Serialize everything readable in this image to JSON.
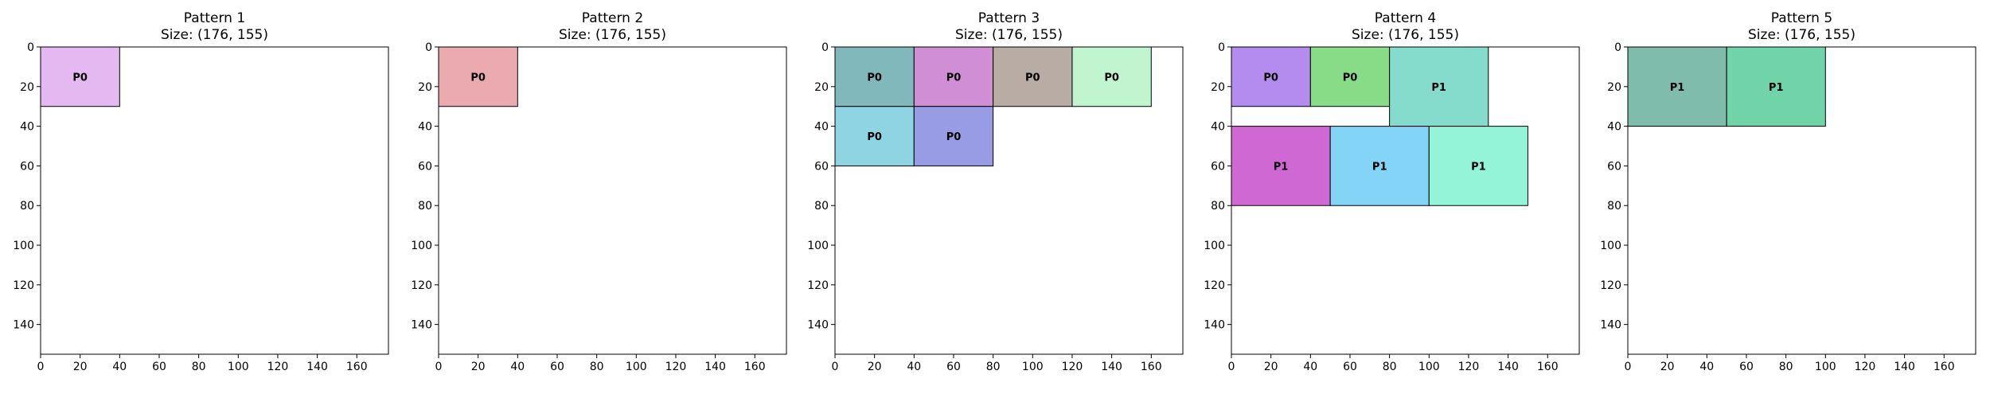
{
  "chart_data": [
    {
      "type": "rectangles",
      "title": "Pattern 1",
      "subtitle": "Size: (176, 155)",
      "xlim": [
        0,
        176
      ],
      "ylim": [
        0,
        155
      ],
      "y_inverted": true,
      "xticks": [
        0,
        20,
        40,
        60,
        80,
        100,
        120,
        140,
        160
      ],
      "yticks": [
        0,
        20,
        40,
        60,
        80,
        100,
        120,
        140
      ],
      "rects": [
        {
          "label": "P0",
          "x": 0,
          "y": 0,
          "w": 40,
          "h": 30,
          "color": "#e4b8f0"
        }
      ]
    },
    {
      "type": "rectangles",
      "title": "Pattern 2",
      "subtitle": "Size: (176, 155)",
      "xlim": [
        0,
        176
      ],
      "ylim": [
        0,
        155
      ],
      "y_inverted": true,
      "xticks": [
        0,
        20,
        40,
        60,
        80,
        100,
        120,
        140,
        160
      ],
      "yticks": [
        0,
        20,
        40,
        60,
        80,
        100,
        120,
        140
      ],
      "rects": [
        {
          "label": "P0",
          "x": 0,
          "y": 0,
          "w": 40,
          "h": 30,
          "color": "#ebaab0"
        }
      ]
    },
    {
      "type": "rectangles",
      "title": "Pattern 3",
      "subtitle": "Size: (176, 155)",
      "xlim": [
        0,
        176
      ],
      "ylim": [
        0,
        155
      ],
      "y_inverted": true,
      "xticks": [
        0,
        20,
        40,
        60,
        80,
        100,
        120,
        140,
        160
      ],
      "yticks": [
        0,
        20,
        40,
        60,
        80,
        100,
        120,
        140
      ],
      "rects": [
        {
          "label": "P0",
          "x": 0,
          "y": 0,
          "w": 40,
          "h": 30,
          "color": "#80b8bc"
        },
        {
          "label": "P0",
          "x": 40,
          "y": 0,
          "w": 40,
          "h": 30,
          "color": "#d08ed4"
        },
        {
          "label": "P0",
          "x": 80,
          "y": 0,
          "w": 40,
          "h": 30,
          "color": "#b8aca4"
        },
        {
          "label": "P0",
          "x": 120,
          "y": 0,
          "w": 40,
          "h": 30,
          "color": "#c0f5d0"
        },
        {
          "label": "P0",
          "x": 0,
          "y": 30,
          "w": 40,
          "h": 30,
          "color": "#8ed4e2"
        },
        {
          "label": "P0",
          "x": 40,
          "y": 30,
          "w": 40,
          "h": 30,
          "color": "#989ce4"
        }
      ]
    },
    {
      "type": "rectangles",
      "title": "Pattern 4",
      "subtitle": "Size: (176, 155)",
      "xlim": [
        0,
        176
      ],
      "ylim": [
        0,
        155
      ],
      "y_inverted": true,
      "xticks": [
        0,
        20,
        40,
        60,
        80,
        100,
        120,
        140,
        160
      ],
      "yticks": [
        0,
        20,
        40,
        60,
        80,
        100,
        120,
        140
      ],
      "rects": [
        {
          "label": "P0",
          "x": 0,
          "y": 0,
          "w": 40,
          "h": 30,
          "color": "#b48cf0"
        },
        {
          "label": "P0",
          "x": 40,
          "y": 0,
          "w": 40,
          "h": 30,
          "color": "#88dc88"
        },
        {
          "label": "P1",
          "x": 80,
          "y": 0,
          "w": 50,
          "h": 40,
          "color": "#86dccc"
        },
        {
          "label": "P1",
          "x": 0,
          "y": 40,
          "w": 50,
          "h": 40,
          "color": "#d068d4"
        },
        {
          "label": "P1",
          "x": 50,
          "y": 40,
          "w": 50,
          "h": 40,
          "color": "#84d4f8"
        },
        {
          "label": "P1",
          "x": 100,
          "y": 40,
          "w": 50,
          "h": 40,
          "color": "#94f4d8"
        }
      ]
    },
    {
      "type": "rectangles",
      "title": "Pattern 5",
      "subtitle": "Size: (176, 155)",
      "xlim": [
        0,
        176
      ],
      "ylim": [
        0,
        155
      ],
      "y_inverted": true,
      "xticks": [
        0,
        20,
        40,
        60,
        80,
        100,
        120,
        140,
        160
      ],
      "yticks": [
        0,
        20,
        40,
        60,
        80,
        100,
        120,
        140
      ],
      "rects": [
        {
          "label": "P1",
          "x": 0,
          "y": 0,
          "w": 50,
          "h": 40,
          "color": "#80bcac"
        },
        {
          "label": "P1",
          "x": 50,
          "y": 0,
          "w": 50,
          "h": 40,
          "color": "#70d4a8"
        }
      ]
    }
  ]
}
